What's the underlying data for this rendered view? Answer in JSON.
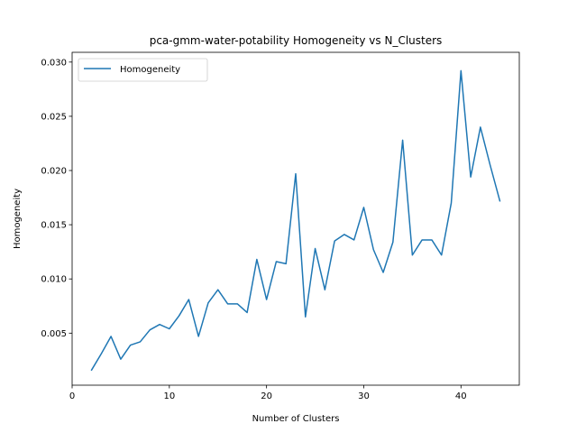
{
  "chart_data": {
    "type": "line",
    "title": "pca-gmm-water-potability Homogeneity vs N_Clusters",
    "xlabel": "Number of Clusters",
    "ylabel": "Homogeneity",
    "xlim": [
      0,
      46
    ],
    "ylim": [
      0.0002,
      0.0309
    ],
    "xticks": [
      0,
      10,
      20,
      30,
      40
    ],
    "yticks": [
      0.005,
      0.01,
      0.015,
      0.02,
      0.025,
      0.03
    ],
    "ytick_labels": [
      "0.005",
      "0.010",
      "0.015",
      "0.020",
      "0.025",
      "0.030"
    ],
    "grid": false,
    "legend": "top-left",
    "series": [
      {
        "name": "Homogeneity",
        "color": "#1f77b4",
        "x": [
          2,
          3,
          4,
          5,
          6,
          7,
          8,
          9,
          10,
          11,
          12,
          13,
          14,
          15,
          16,
          17,
          18,
          19,
          20,
          21,
          22,
          23,
          24,
          25,
          26,
          27,
          28,
          29,
          30,
          31,
          32,
          33,
          34,
          35,
          36,
          37,
          38,
          39,
          40,
          41,
          42,
          43,
          44
        ],
        "y": [
          0.0016,
          0.0031,
          0.0047,
          0.0026,
          0.0039,
          0.0042,
          0.0053,
          0.0058,
          0.0054,
          0.0066,
          0.0081,
          0.0047,
          0.0078,
          0.009,
          0.0077,
          0.0077,
          0.0069,
          0.0118,
          0.0081,
          0.0116,
          0.0114,
          0.0197,
          0.0065,
          0.0128,
          0.009,
          0.0135,
          0.0141,
          0.0136,
          0.0166,
          0.0127,
          0.0106,
          0.0134,
          0.0228,
          0.0122,
          0.0136,
          0.0136,
          0.0122,
          0.017,
          0.0292,
          0.0194,
          0.024,
          0.0205,
          0.0172
        ]
      }
    ]
  }
}
